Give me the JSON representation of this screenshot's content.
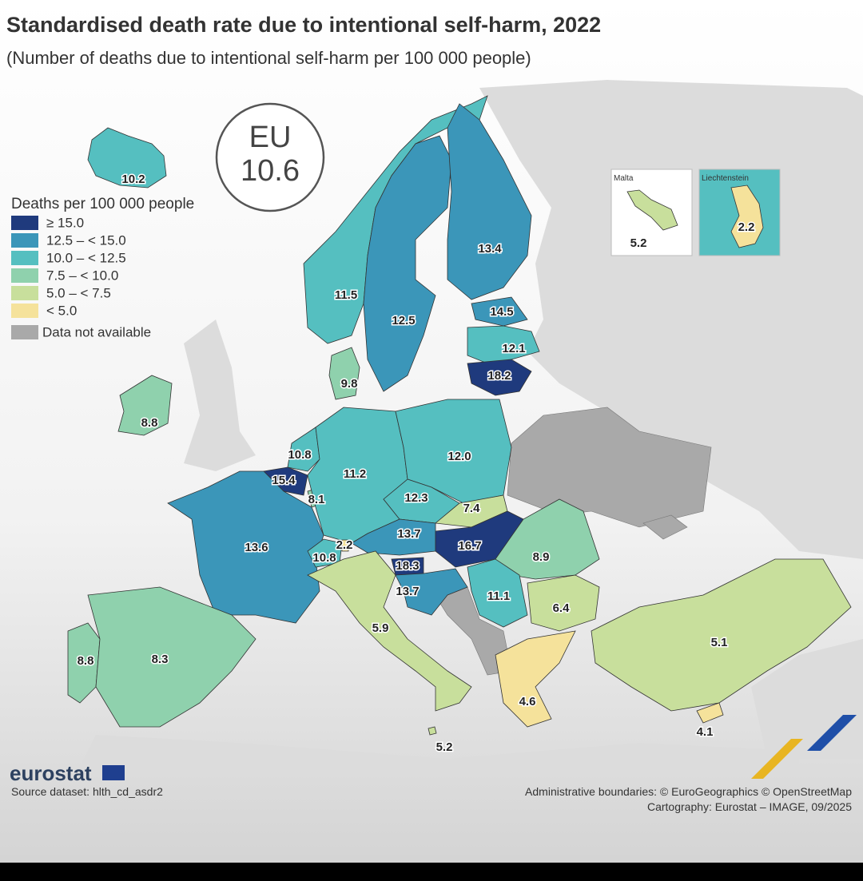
{
  "title": "Standardised death rate due to intentional self-harm, 2022",
  "subtitle": "(Number of deaths due to intentional self-harm per 100 000 people)",
  "eu": {
    "label": "EU",
    "value": "10.6"
  },
  "legend": {
    "title": "Deaths per 100 000 people",
    "classes": [
      {
        "label": "≥ 15.0",
        "color": "#1f3a7d"
      },
      {
        "label": "12.5 – < 15.0",
        "color": "#3b96b9"
      },
      {
        "label": "10.0 – < 12.5",
        "color": "#55bfc0"
      },
      {
        "label": "7.5 – < 10.0",
        "color": "#8fd1ad"
      },
      {
        "label": "5.0 – < 7.5",
        "color": "#c8df9c"
      },
      {
        "label": "< 5.0",
        "color": "#f5e29b"
      }
    ],
    "na": {
      "label": "Data not available",
      "color": "#a9a9a9"
    }
  },
  "insets": [
    {
      "title": "Malta",
      "value": "5.2",
      "color": "#c8df9c"
    },
    {
      "title": "Liechtenstein",
      "value": "2.2",
      "color": "#f5e29b"
    }
  ],
  "regions": [
    {
      "value": "10.2",
      "color": "#55bfc0"
    },
    {
      "value": "11.5",
      "color": "#55bfc0"
    },
    {
      "value": "12.5",
      "color": "#3b96b9"
    },
    {
      "value": "13.4",
      "color": "#3b96b9"
    },
    {
      "value": "14.5",
      "color": "#3b96b9"
    },
    {
      "value": "12.1",
      "color": "#55bfc0"
    },
    {
      "value": "18.2",
      "color": "#1f3a7d"
    },
    {
      "value": "9.8",
      "color": "#8fd1ad"
    },
    {
      "value": "8.8",
      "color": "#8fd1ad"
    },
    {
      "value": "10.8",
      "color": "#55bfc0"
    },
    {
      "value": "15.4",
      "color": "#1f3a7d"
    },
    {
      "value": "8.1",
      "color": "#8fd1ad"
    },
    {
      "value": "11.2",
      "color": "#55bfc0"
    },
    {
      "value": "12.0",
      "color": "#55bfc0"
    },
    {
      "value": "12.3",
      "color": "#55bfc0"
    },
    {
      "value": "7.4",
      "color": "#c8df9c"
    },
    {
      "value": "13.7",
      "color": "#3b96b9"
    },
    {
      "value": "16.7",
      "color": "#1f3a7d"
    },
    {
      "value": "8.9",
      "color": "#8fd1ad"
    },
    {
      "value": "13.6",
      "color": "#3b96b9"
    },
    {
      "value": "10.8",
      "color": "#55bfc0"
    },
    {
      "value": "2.2",
      "color": "#f5e29b"
    },
    {
      "value": "18.3",
      "color": "#1f3a7d"
    },
    {
      "value": "13.7",
      "color": "#3b96b9"
    },
    {
      "value": "11.1",
      "color": "#55bfc0"
    },
    {
      "value": "6.4",
      "color": "#c8df9c"
    },
    {
      "value": "5.9",
      "color": "#c8df9c"
    },
    {
      "value": "8.8",
      "color": "#8fd1ad"
    },
    {
      "value": "8.3",
      "color": "#8fd1ad"
    },
    {
      "value": "4.6",
      "color": "#f5e29b"
    },
    {
      "value": "5.1",
      "color": "#c8df9c"
    },
    {
      "value": "4.1",
      "color": "#f5e29b"
    },
    {
      "value": "5.2",
      "color": "#c8df9c"
    }
  ],
  "footer": {
    "brand": "eurostat",
    "source": "Source dataset: hlth_cd_asdr2",
    "credits": [
      "Administrative boundaries: © EuroGeographics © OpenStreetMap",
      "Cartography: Eurostat – IMAGE, 09/2025"
    ]
  }
}
